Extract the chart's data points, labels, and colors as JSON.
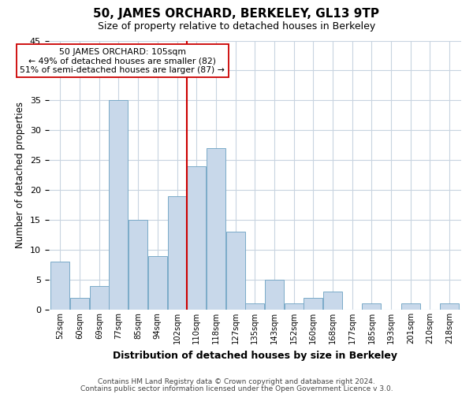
{
  "title": "50, JAMES ORCHARD, BERKELEY, GL13 9TP",
  "subtitle": "Size of property relative to detached houses in Berkeley",
  "xlabel": "Distribution of detached houses by size in Berkeley",
  "ylabel": "Number of detached properties",
  "bin_labels": [
    "52sqm",
    "60sqm",
    "69sqm",
    "77sqm",
    "85sqm",
    "94sqm",
    "102sqm",
    "110sqm",
    "118sqm",
    "127sqm",
    "135sqm",
    "143sqm",
    "152sqm",
    "160sqm",
    "168sqm",
    "177sqm",
    "185sqm",
    "193sqm",
    "201sqm",
    "210sqm",
    "218sqm"
  ],
  "bar_values": [
    8,
    2,
    4,
    35,
    15,
    9,
    19,
    24,
    27,
    13,
    1,
    5,
    1,
    2,
    3,
    0,
    1,
    0,
    1,
    0,
    1
  ],
  "bar_color": "#c8d8ea",
  "bar_edge_color": "#7aaac8",
  "vline_color": "#cc0000",
  "annotation_text": "50 JAMES ORCHARD: 105sqm\n← 49% of detached houses are smaller (82)\n51% of semi-detached houses are larger (87) →",
  "annotation_boxcolor": "white",
  "annotation_edgecolor": "#cc0000",
  "ylim": [
    0,
    45
  ],
  "yticks": [
    0,
    5,
    10,
    15,
    20,
    25,
    30,
    35,
    40,
    45
  ],
  "footer1": "Contains HM Land Registry data © Crown copyright and database right 2024.",
  "footer2": "Contains public sector information licensed under the Open Government Licence v 3.0.",
  "background_color": "#ffffff",
  "grid_color": "#c8d4e0",
  "title_fontsize": 11,
  "subtitle_fontsize": 9
}
